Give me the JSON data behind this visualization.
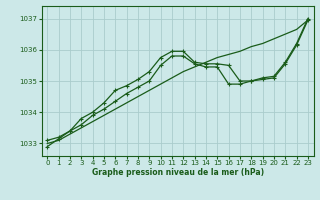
{
  "xlabel": "Graphe pression niveau de la mer (hPa)",
  "xlim": [
    -0.5,
    23.5
  ],
  "ylim": [
    1032.6,
    1037.4
  ],
  "yticks": [
    1033,
    1034,
    1035,
    1036,
    1037
  ],
  "xticks": [
    0,
    1,
    2,
    3,
    4,
    5,
    6,
    7,
    8,
    9,
    10,
    11,
    12,
    13,
    14,
    15,
    16,
    17,
    18,
    19,
    20,
    21,
    22,
    23
  ],
  "background_color": "#cce8e8",
  "grid_color": "#aacccc",
  "line_color": "#1a5c1a",
  "line1_y": [
    1033.0,
    1033.1,
    1033.3,
    1033.5,
    1033.7,
    1033.9,
    1034.1,
    1034.3,
    1034.5,
    1034.7,
    1034.9,
    1035.1,
    1035.3,
    1035.45,
    1035.6,
    1035.75,
    1035.85,
    1035.95,
    1036.1,
    1036.2,
    1036.35,
    1036.5,
    1036.65,
    1036.95
  ],
  "line2_y": [
    1033.1,
    1033.2,
    1033.4,
    1033.8,
    1034.0,
    1034.3,
    1034.7,
    1034.85,
    1035.05,
    1035.3,
    1035.75,
    1035.95,
    1035.95,
    1035.6,
    1035.55,
    1035.55,
    1035.5,
    1035.0,
    1035.0,
    1035.1,
    1035.15,
    1035.6,
    1036.2,
    1037.0
  ],
  "line3_y": [
    1032.9,
    1033.15,
    1033.4,
    1033.6,
    1033.9,
    1034.1,
    1034.35,
    1034.6,
    1034.8,
    1035.0,
    1035.5,
    1035.8,
    1035.8,
    1035.55,
    1035.45,
    1035.45,
    1034.9,
    1034.9,
    1035.0,
    1035.05,
    1035.1,
    1035.55,
    1036.15,
    1036.95
  ]
}
